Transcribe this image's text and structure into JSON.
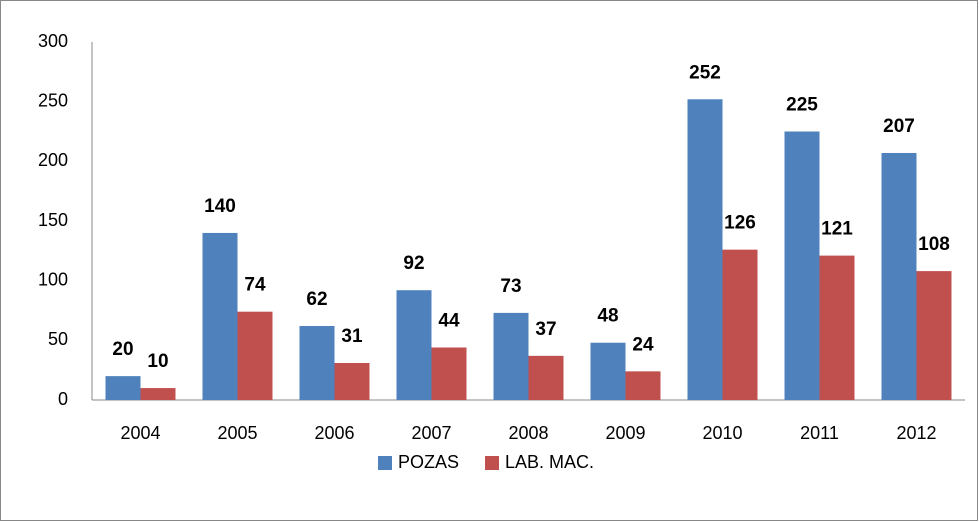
{
  "chart_data": {
    "type": "bar",
    "categories": [
      "2004",
      "2005",
      "2006",
      "2007",
      "2008",
      "2009",
      "2010",
      "2011",
      "2012"
    ],
    "series": [
      {
        "name": "POZAS",
        "color": "#4f81bd",
        "values": [
          20,
          140,
          62,
          92,
          73,
          48,
          252,
          225,
          207
        ]
      },
      {
        "name": "LAB. MAC.",
        "color": "#c0504d",
        "values": [
          10,
          74,
          31,
          44,
          37,
          24,
          126,
          121,
          108
        ]
      }
    ],
    "ylim": [
      0,
      300
    ],
    "yticks": [
      0,
      50,
      100,
      150,
      200,
      250,
      300
    ],
    "grid": false,
    "legend": "bottom"
  }
}
